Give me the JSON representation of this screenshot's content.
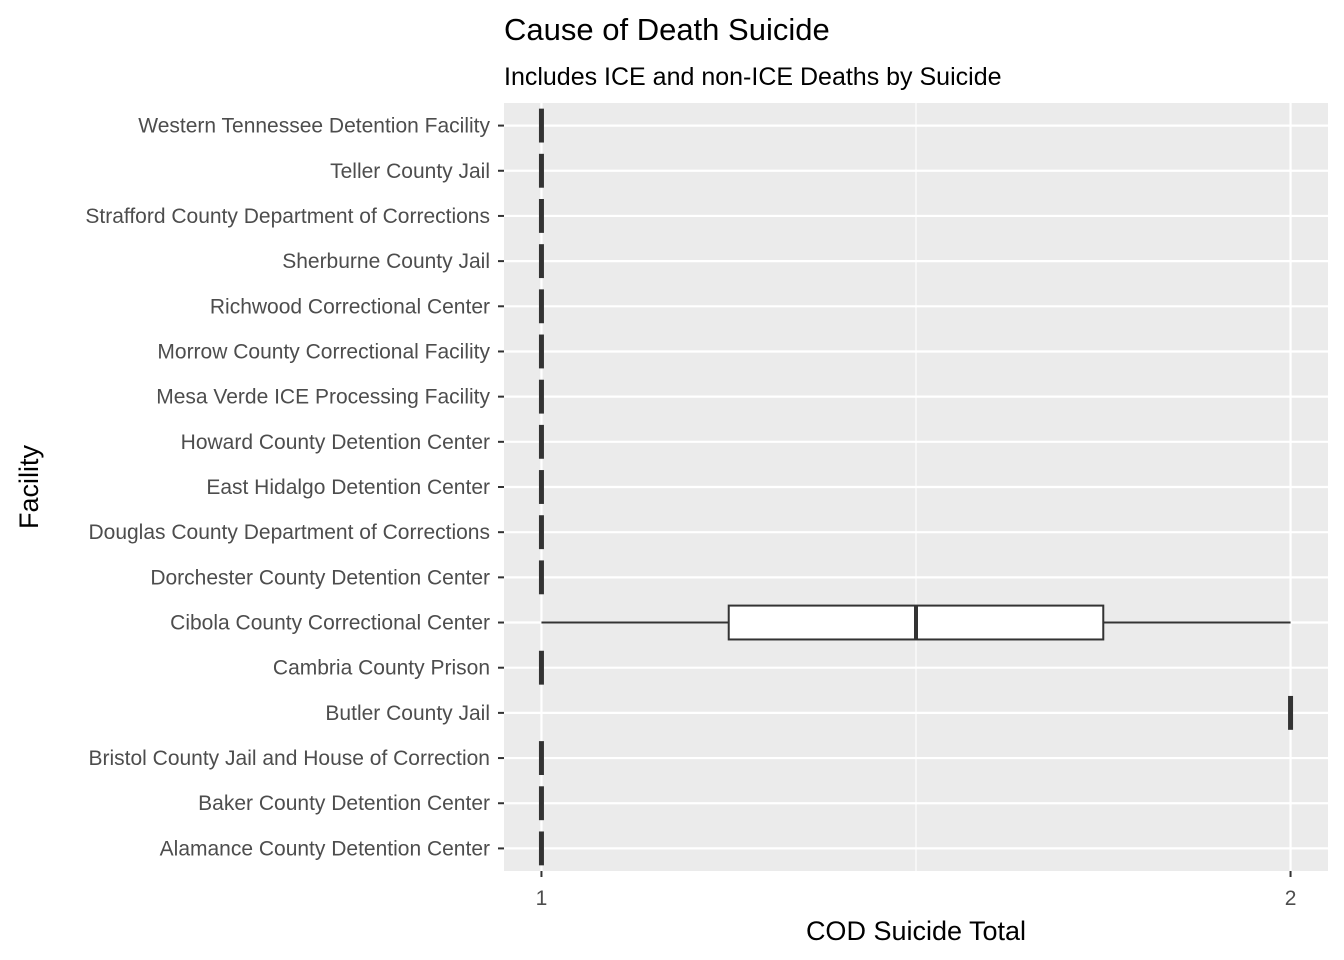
{
  "chart_data": {
    "type": "boxplot",
    "title": "Cause of Death Suicide",
    "subtitle": "Includes ICE and non-ICE Deaths by Suicide",
    "xlabel": "COD Suicide Total",
    "ylabel": "Facility",
    "xlim": [
      0.95,
      2.05
    ],
    "x_ticks": [
      1,
      2
    ],
    "x_tick_labels": [
      "1",
      "2"
    ],
    "grid": true,
    "categories": [
      "Alamance County Detention Center",
      "Baker County Detention Center",
      "Bristol County Jail and House of Correction",
      "Butler County Jail",
      "Cambria County Prison",
      "Cibola County Correctional Center",
      "Dorchester County Detention Center",
      "Douglas County Department of Corrections",
      "East Hidalgo Detention Center",
      "Howard County Detention Center",
      "Mesa Verde ICE Processing Facility",
      "Morrow County Correctional Facility",
      "Richwood Correctional Center",
      "Sherburne County Jail",
      "Strafford County Department of Corrections",
      "Teller County Jail",
      "Western Tennessee Detention Facility"
    ],
    "boxes": [
      {
        "min": 1,
        "q1": 1,
        "median": 1,
        "q3": 1,
        "max": 1
      },
      {
        "min": 1,
        "q1": 1,
        "median": 1,
        "q3": 1,
        "max": 1
      },
      {
        "min": 1,
        "q1": 1,
        "median": 1,
        "q3": 1,
        "max": 1
      },
      {
        "min": 2,
        "q1": 2,
        "median": 2,
        "q3": 2,
        "max": 2
      },
      {
        "min": 1,
        "q1": 1,
        "median": 1,
        "q3": 1,
        "max": 1
      },
      {
        "min": 1,
        "q1": 1.25,
        "median": 1.5,
        "q3": 1.75,
        "max": 2
      },
      {
        "min": 1,
        "q1": 1,
        "median": 1,
        "q3": 1,
        "max": 1
      },
      {
        "min": 1,
        "q1": 1,
        "median": 1,
        "q3": 1,
        "max": 1
      },
      {
        "min": 1,
        "q1": 1,
        "median": 1,
        "q3": 1,
        "max": 1
      },
      {
        "min": 1,
        "q1": 1,
        "median": 1,
        "q3": 1,
        "max": 1
      },
      {
        "min": 1,
        "q1": 1,
        "median": 1,
        "q3": 1,
        "max": 1
      },
      {
        "min": 1,
        "q1": 1,
        "median": 1,
        "q3": 1,
        "max": 1
      },
      {
        "min": 1,
        "q1": 1,
        "median": 1,
        "q3": 1,
        "max": 1
      },
      {
        "min": 1,
        "q1": 1,
        "median": 1,
        "q3": 1,
        "max": 1
      },
      {
        "min": 1,
        "q1": 1,
        "median": 1,
        "q3": 1,
        "max": 1
      },
      {
        "min": 1,
        "q1": 1,
        "median": 1,
        "q3": 1,
        "max": 1
      },
      {
        "min": 1,
        "q1": 1,
        "median": 1,
        "q3": 1,
        "max": 1
      }
    ],
    "colors": {
      "panel_background": "#EBEBEB",
      "grid_major": "#FFFFFF",
      "grid_minor": "#F5F5F5",
      "box_fill": "#FFFFFF",
      "box_line": "#333333",
      "tick_text": "#4D4D4D"
    }
  }
}
